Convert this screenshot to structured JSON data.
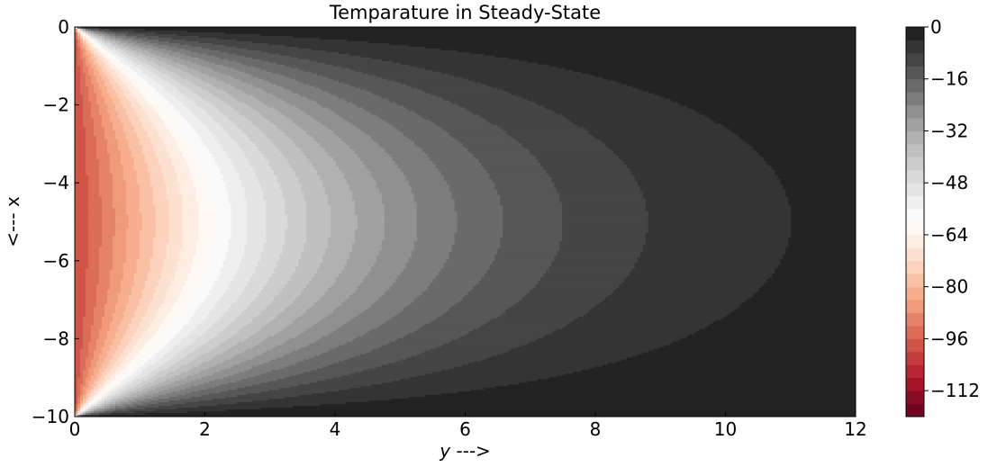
{
  "chart_data": {
    "type": "heatmap",
    "title": "Temparature in Steady-State",
    "xlabel": "y --->",
    "ylabel": "<--- x",
    "xlim": [
      0,
      12
    ],
    "ylim": [
      -10,
      0
    ],
    "xticks": [
      0,
      2,
      4,
      6,
      8,
      10,
      12
    ],
    "yticks": [
      0,
      -2,
      -4,
      -6,
      -8,
      -10
    ],
    "colorbar": {
      "range": [
        -120,
        0
      ],
      "levels": [
        -120,
        -116,
        -112,
        -108,
        -104,
        -100,
        -96,
        -92,
        -88,
        -84,
        -80,
        -76,
        -72,
        -68,
        -64,
        -60,
        -56,
        -52,
        -48,
        -44,
        -40,
        -36,
        -32,
        -28,
        -24,
        -20,
        -16,
        -12,
        -8,
        -4,
        0
      ],
      "ticks": [
        0,
        -16,
        -32,
        -48,
        -64,
        -80,
        -96,
        -112
      ],
      "colormap": "RdGy"
    },
    "field": {
      "boundary_left_value": -100,
      "boundary_other_value": 0,
      "description_shown": "contours decay from the left edge toward the right; outermost contour reaches about y=11 at x=-5"
    },
    "grid": false
  }
}
